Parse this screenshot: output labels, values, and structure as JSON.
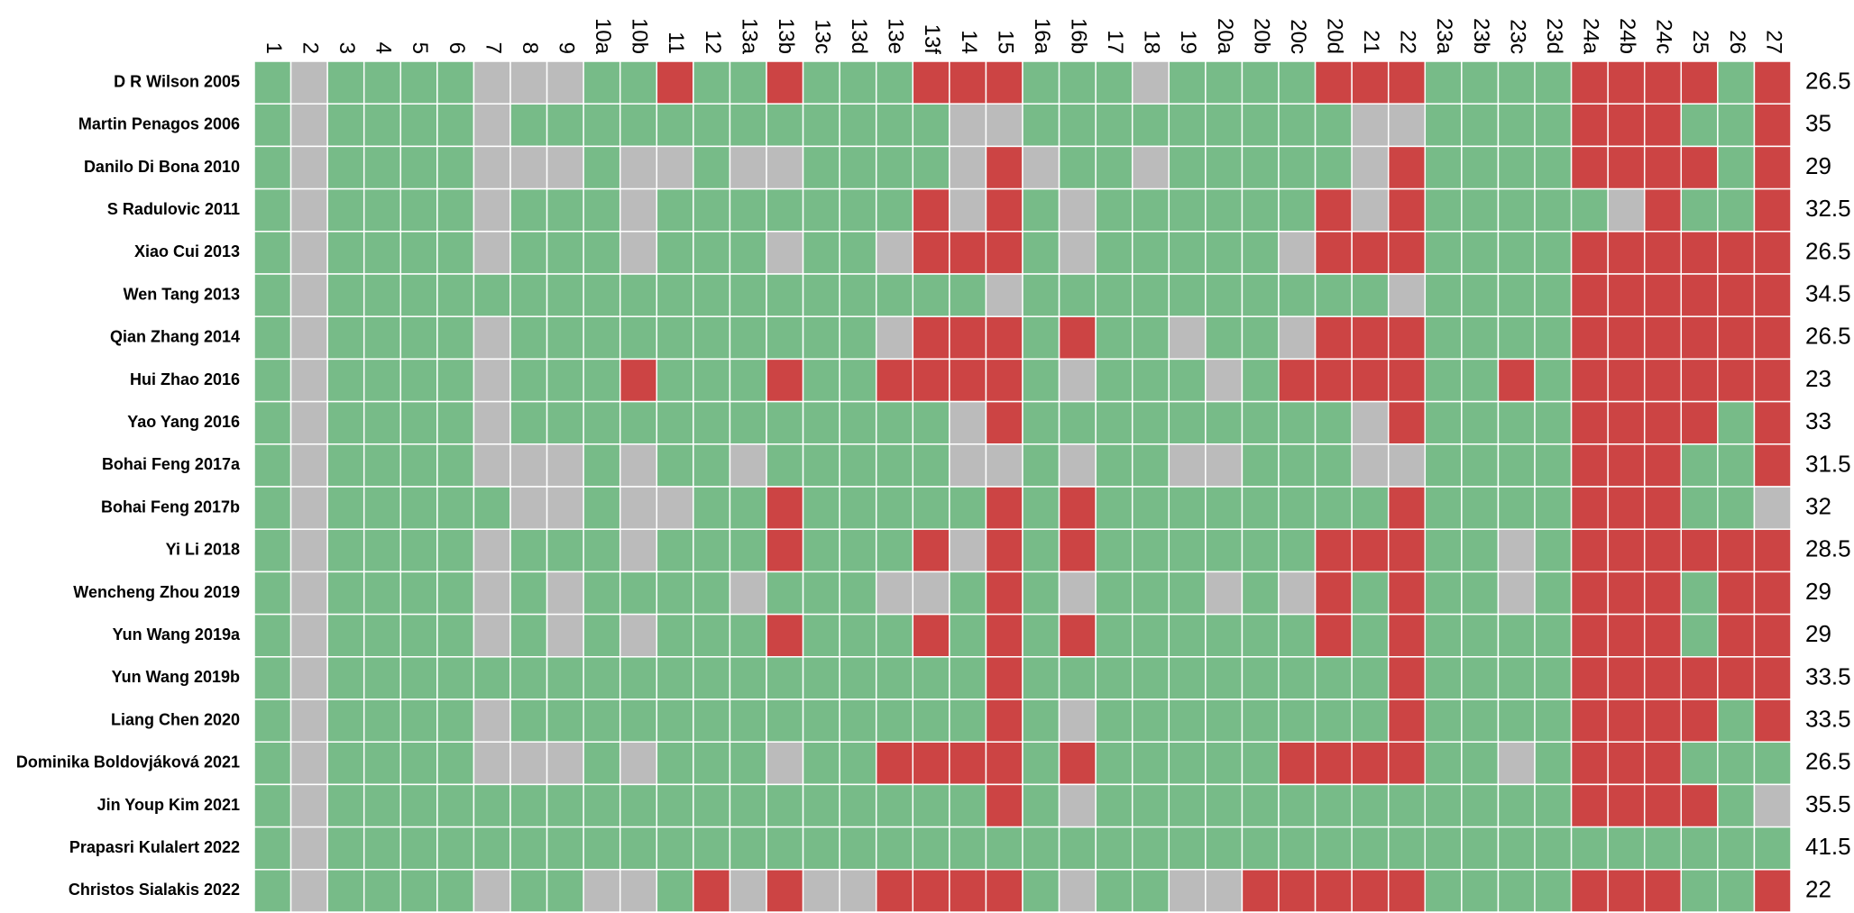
{
  "table": {
    "columns": [
      "1",
      "2",
      "3",
      "4",
      "5",
      "6",
      "7",
      "8",
      "9",
      "10a",
      "10b",
      "11",
      "12",
      "13a",
      "13b",
      "13c",
      "13d",
      "13e",
      "13f",
      "14",
      "15",
      "16a",
      "16b",
      "17",
      "18",
      "19",
      "20a",
      "20b",
      "20c",
      "20d",
      "21",
      "22",
      "23a",
      "23b",
      "23c",
      "23d",
      "24a",
      "24b",
      "24c",
      "25",
      "26",
      "27"
    ],
    "rows": [
      {
        "label": "D R Wilson 2005",
        "score": 26.5,
        "cells": [
          "#7b8",
          "#bbb",
          "#7b8",
          "#7b8",
          "#7b8",
          "#7b8",
          "#bbb",
          "#bbb",
          "#bbb",
          "#7b8",
          "#7b8",
          "#c44",
          "#7b8",
          "#7b8",
          "#c44",
          "#7b8",
          "#7b8",
          "#7b8",
          "#c44",
          "#c44",
          "#c44",
          "#7b8",
          "#7b8",
          "#7b8",
          "#bbb",
          "#7b8",
          "#7b8",
          "#7b8",
          "#7b8",
          "#c44",
          "#c44",
          "#c44",
          "#7b8",
          "#7b8",
          "#7b8",
          "#7b8",
          "#c44",
          "#c44",
          "#c44",
          "#c44",
          "#7b8",
          "#c44"
        ]
      },
      {
        "label": "Martin Penagos 2006",
        "score": 35,
        "cells": [
          "#7b8",
          "#bbb",
          "#7b8",
          "#7b8",
          "#7b8",
          "#7b8",
          "#bbb",
          "#7b8",
          "#7b8",
          "#7b8",
          "#7b8",
          "#7b8",
          "#7b8",
          "#7b8",
          "#7b8",
          "#7b8",
          "#7b8",
          "#7b8",
          "#7b8",
          "#bbb",
          "#bbb",
          "#7b8",
          "#7b8",
          "#7b8",
          "#7b8",
          "#7b8",
          "#7b8",
          "#7b8",
          "#7b8",
          "#7b8",
          "#bbb",
          "#bbb",
          "#7b8",
          "#7b8",
          "#7b8",
          "#7b8",
          "#c44",
          "#c44",
          "#c44",
          "#7b8",
          "#7b8",
          "#c44"
        ]
      },
      {
        "label": "Danilo Di Bona 2010",
        "score": 29,
        "cells": [
          "#7b8",
          "#bbb",
          "#7b8",
          "#7b8",
          "#7b8",
          "#7b8",
          "#bbb",
          "#bbb",
          "#bbb",
          "#7b8",
          "#bbb",
          "#bbb",
          "#7b8",
          "#bbb",
          "#bbb",
          "#7b8",
          "#7b8",
          "#7b8",
          "#7b8",
          "#bbb",
          "#c44",
          "#bbb",
          "#7b8",
          "#7b8",
          "#bbb",
          "#7b8",
          "#7b8",
          "#7b8",
          "#7b8",
          "#7b8",
          "#bbb",
          "#c44",
          "#7b8",
          "#7b8",
          "#7b8",
          "#7b8",
          "#c44",
          "#c44",
          "#c44",
          "#c44",
          "#7b8",
          "#c44"
        ]
      },
      {
        "label": "S Radulovic 2011",
        "score": 32.5,
        "cells": [
          "#7b8",
          "#bbb",
          "#7b8",
          "#7b8",
          "#7b8",
          "#7b8",
          "#bbb",
          "#7b8",
          "#7b8",
          "#7b8",
          "#bbb",
          "#7b8",
          "#7b8",
          "#7b8",
          "#7b8",
          "#7b8",
          "#7b8",
          "#7b8",
          "#c44",
          "#bbb",
          "#c44",
          "#7b8",
          "#bbb",
          "#7b8",
          "#7b8",
          "#7b8",
          "#7b8",
          "#7b8",
          "#7b8",
          "#c44",
          "#bbb",
          "#c44",
          "#7b8",
          "#7b8",
          "#7b8",
          "#7b8",
          "#7b8",
          "#bbb",
          "#c44",
          "#7b8",
          "#7b8",
          "#c44"
        ]
      },
      {
        "label": "Xiao Cui 2013",
        "score": 26.5,
        "cells": [
          "#7b8",
          "#bbb",
          "#7b8",
          "#7b8",
          "#7b8",
          "#7b8",
          "#bbb",
          "#7b8",
          "#7b8",
          "#7b8",
          "#bbb",
          "#7b8",
          "#7b8",
          "#7b8",
          "#bbb",
          "#7b8",
          "#7b8",
          "#bbb",
          "#c44",
          "#c44",
          "#c44",
          "#7b8",
          "#bbb",
          "#7b8",
          "#7b8",
          "#7b8",
          "#7b8",
          "#7b8",
          "#bbb",
          "#c44",
          "#c44",
          "#c44",
          "#7b8",
          "#7b8",
          "#7b8",
          "#7b8",
          "#c44",
          "#c44",
          "#c44",
          "#c44",
          "#c44",
          "#c44"
        ]
      },
      {
        "label": "Wen Tang 2013",
        "score": 34.5,
        "cells": [
          "#7b8",
          "#bbb",
          "#7b8",
          "#7b8",
          "#7b8",
          "#7b8",
          "#7b8",
          "#7b8",
          "#7b8",
          "#7b8",
          "#7b8",
          "#7b8",
          "#7b8",
          "#7b8",
          "#7b8",
          "#7b8",
          "#7b8",
          "#7b8",
          "#7b8",
          "#7b8",
          "#bbb",
          "#7b8",
          "#7b8",
          "#7b8",
          "#7b8",
          "#7b8",
          "#7b8",
          "#7b8",
          "#7b8",
          "#7b8",
          "#7b8",
          "#bbb",
          "#7b8",
          "#7b8",
          "#7b8",
          "#7b8",
          "#c44",
          "#c44",
          "#c44",
          "#c44",
          "#c44",
          "#c44"
        ]
      },
      {
        "label": "Qian Zhang 2014",
        "score": 26.5,
        "cells": [
          "#7b8",
          "#bbb",
          "#7b8",
          "#7b8",
          "#7b8",
          "#7b8",
          "#bbb",
          "#7b8",
          "#7b8",
          "#7b8",
          "#7b8",
          "#7b8",
          "#7b8",
          "#7b8",
          "#7b8",
          "#7b8",
          "#7b8",
          "#bbb",
          "#c44",
          "#c44",
          "#c44",
          "#7b8",
          "#c44",
          "#7b8",
          "#7b8",
          "#bbb",
          "#7b8",
          "#7b8",
          "#bbb",
          "#c44",
          "#c44",
          "#c44",
          "#7b8",
          "#7b8",
          "#7b8",
          "#7b8",
          "#c44",
          "#c44",
          "#c44",
          "#c44",
          "#c44",
          "#c44"
        ]
      },
      {
        "label": "Hui Zhao 2016",
        "score": 23,
        "cells": [
          "#7b8",
          "#bbb",
          "#7b8",
          "#7b8",
          "#7b8",
          "#7b8",
          "#bbb",
          "#7b8",
          "#7b8",
          "#7b8",
          "#c44",
          "#7b8",
          "#7b8",
          "#7b8",
          "#c44",
          "#7b8",
          "#7b8",
          "#c44",
          "#c44",
          "#c44",
          "#c44",
          "#7b8",
          "#bbb",
          "#7b8",
          "#7b8",
          "#7b8",
          "#bbb",
          "#7b8",
          "#c44",
          "#c44",
          "#c44",
          "#c44",
          "#7b8",
          "#7b8",
          "#c44",
          "#7b8",
          "#c44",
          "#c44",
          "#c44",
          "#c44",
          "#c44",
          "#c44"
        ]
      },
      {
        "label": "Yao Yang 2016",
        "score": 33,
        "cells": [
          "#7b8",
          "#bbb",
          "#7b8",
          "#7b8",
          "#7b8",
          "#7b8",
          "#bbb",
          "#7b8",
          "#7b8",
          "#7b8",
          "#7b8",
          "#7b8",
          "#7b8",
          "#7b8",
          "#7b8",
          "#7b8",
          "#7b8",
          "#7b8",
          "#7b8",
          "#bbb",
          "#c44",
          "#7b8",
          "#7b8",
          "#7b8",
          "#7b8",
          "#7b8",
          "#7b8",
          "#7b8",
          "#7b8",
          "#7b8",
          "#bbb",
          "#c44",
          "#7b8",
          "#7b8",
          "#7b8",
          "#7b8",
          "#c44",
          "#c44",
          "#c44",
          "#c44",
          "#7b8",
          "#c44"
        ]
      },
      {
        "label": "Bohai Feng 2017a",
        "score": 31.5,
        "cells": [
          "#7b8",
          "#bbb",
          "#7b8",
          "#7b8",
          "#7b8",
          "#7b8",
          "#bbb",
          "#bbb",
          "#bbb",
          "#7b8",
          "#bbb",
          "#7b8",
          "#7b8",
          "#bbb",
          "#7b8",
          "#7b8",
          "#7b8",
          "#7b8",
          "#7b8",
          "#bbb",
          "#bbb",
          "#7b8",
          "#bbb",
          "#7b8",
          "#7b8",
          "#bbb",
          "#bbb",
          "#7b8",
          "#7b8",
          "#7b8",
          "#bbb",
          "#bbb",
          "#7b8",
          "#7b8",
          "#7b8",
          "#7b8",
          "#c44",
          "#c44",
          "#c44",
          "#7b8",
          "#7b8",
          "#c44"
        ]
      },
      {
        "label": "Bohai Feng 2017b",
        "score": 32,
        "cells": [
          "#7b8",
          "#bbb",
          "#7b8",
          "#7b8",
          "#7b8",
          "#7b8",
          "#7b8",
          "#bbb",
          "#bbb",
          "#7b8",
          "#bbb",
          "#bbb",
          "#7b8",
          "#7b8",
          "#c44",
          "#7b8",
          "#7b8",
          "#7b8",
          "#7b8",
          "#7b8",
          "#c44",
          "#7b8",
          "#c44",
          "#7b8",
          "#7b8",
          "#7b8",
          "#7b8",
          "#7b8",
          "#7b8",
          "#7b8",
          "#7b8",
          "#c44",
          "#7b8",
          "#7b8",
          "#7b8",
          "#7b8",
          "#c44",
          "#c44",
          "#c44",
          "#7b8",
          "#7b8",
          "#bbb"
        ]
      },
      {
        "label": "Yi Li 2018",
        "score": 28.5,
        "cells": [
          "#7b8",
          "#bbb",
          "#7b8",
          "#7b8",
          "#7b8",
          "#7b8",
          "#bbb",
          "#7b8",
          "#7b8",
          "#7b8",
          "#bbb",
          "#7b8",
          "#7b8",
          "#7b8",
          "#c44",
          "#7b8",
          "#7b8",
          "#7b8",
          "#c44",
          "#bbb",
          "#c44",
          "#7b8",
          "#c44",
          "#7b8",
          "#7b8",
          "#7b8",
          "#7b8",
          "#7b8",
          "#7b8",
          "#c44",
          "#c44",
          "#c44",
          "#7b8",
          "#7b8",
          "#bbb",
          "#7b8",
          "#c44",
          "#c44",
          "#c44",
          "#c44",
          "#c44",
          "#c44"
        ]
      },
      {
        "label": "Wencheng Zhou 2019",
        "score": 29,
        "cells": [
          "#7b8",
          "#bbb",
          "#7b8",
          "#7b8",
          "#7b8",
          "#7b8",
          "#bbb",
          "#7b8",
          "#bbb",
          "#7b8",
          "#7b8",
          "#7b8",
          "#7b8",
          "#bbb",
          "#7b8",
          "#7b8",
          "#7b8",
          "#bbb",
          "#bbb",
          "#7b8",
          "#c44",
          "#7b8",
          "#bbb",
          "#7b8",
          "#7b8",
          "#7b8",
          "#bbb",
          "#7b8",
          "#bbb",
          "#c44",
          "#7b8",
          "#c44",
          "#7b8",
          "#7b8",
          "#bbb",
          "#7b8",
          "#c44",
          "#c44",
          "#c44",
          "#7b8",
          "#c44",
          "#c44"
        ]
      },
      {
        "label": "Yun Wang 2019a",
        "score": 29,
        "cells": [
          "#7b8",
          "#bbb",
          "#7b8",
          "#7b8",
          "#7b8",
          "#7b8",
          "#bbb",
          "#7b8",
          "#bbb",
          "#7b8",
          "#bbb",
          "#7b8",
          "#7b8",
          "#7b8",
          "#c44",
          "#7b8",
          "#7b8",
          "#7b8",
          "#c44",
          "#7b8",
          "#c44",
          "#7b8",
          "#c44",
          "#7b8",
          "#7b8",
          "#7b8",
          "#7b8",
          "#7b8",
          "#7b8",
          "#c44",
          "#7b8",
          "#c44",
          "#7b8",
          "#7b8",
          "#7b8",
          "#7b8",
          "#c44",
          "#c44",
          "#c44",
          "#7b8",
          "#c44",
          "#c44"
        ]
      },
      {
        "label": "Yun Wang 2019b",
        "score": 33.5,
        "cells": [
          "#7b8",
          "#bbb",
          "#7b8",
          "#7b8",
          "#7b8",
          "#7b8",
          "#7b8",
          "#7b8",
          "#7b8",
          "#7b8",
          "#7b8",
          "#7b8",
          "#7b8",
          "#7b8",
          "#7b8",
          "#7b8",
          "#7b8",
          "#7b8",
          "#7b8",
          "#7b8",
          "#c44",
          "#7b8",
          "#7b8",
          "#7b8",
          "#7b8",
          "#7b8",
          "#7b8",
          "#7b8",
          "#7b8",
          "#7b8",
          "#7b8",
          "#c44",
          "#7b8",
          "#7b8",
          "#7b8",
          "#7b8",
          "#c44",
          "#c44",
          "#c44",
          "#c44",
          "#c44",
          "#c44"
        ]
      },
      {
        "label": "Liang Chen 2020",
        "score": 33.5,
        "cells": [
          "#7b8",
          "#bbb",
          "#7b8",
          "#7b8",
          "#7b8",
          "#7b8",
          "#bbb",
          "#7b8",
          "#7b8",
          "#7b8",
          "#7b8",
          "#7b8",
          "#7b8",
          "#7b8",
          "#7b8",
          "#7b8",
          "#7b8",
          "#7b8",
          "#7b8",
          "#7b8",
          "#c44",
          "#7b8",
          "#bbb",
          "#7b8",
          "#7b8",
          "#7b8",
          "#7b8",
          "#7b8",
          "#7b8",
          "#7b8",
          "#7b8",
          "#c44",
          "#7b8",
          "#7b8",
          "#7b8",
          "#7b8",
          "#c44",
          "#c44",
          "#c44",
          "#c44",
          "#7b8",
          "#c44"
        ]
      },
      {
        "label": "Dominika Boldovjáková 2021",
        "score": 26.5,
        "cells": [
          "#7b8",
          "#bbb",
          "#7b8",
          "#7b8",
          "#7b8",
          "#7b8",
          "#bbb",
          "#bbb",
          "#bbb",
          "#7b8",
          "#bbb",
          "#7b8",
          "#7b8",
          "#7b8",
          "#bbb",
          "#7b8",
          "#7b8",
          "#c44",
          "#c44",
          "#c44",
          "#c44",
          "#7b8",
          "#c44",
          "#7b8",
          "#7b8",
          "#7b8",
          "#7b8",
          "#7b8",
          "#c44",
          "#c44",
          "#c44",
          "#c44",
          "#7b8",
          "#7b8",
          "#bbb",
          "#7b8",
          "#c44",
          "#c44",
          "#c44",
          "#7b8",
          "#7b8",
          "#7b8"
        ]
      },
      {
        "label": "Jin Youp Kim 2021",
        "score": 35.5,
        "cells": [
          "#7b8",
          "#bbb",
          "#7b8",
          "#7b8",
          "#7b8",
          "#7b8",
          "#7b8",
          "#7b8",
          "#7b8",
          "#7b8",
          "#7b8",
          "#7b8",
          "#7b8",
          "#7b8",
          "#7b8",
          "#7b8",
          "#7b8",
          "#7b8",
          "#7b8",
          "#7b8",
          "#c44",
          "#7b8",
          "#bbb",
          "#7b8",
          "#7b8",
          "#7b8",
          "#7b8",
          "#7b8",
          "#7b8",
          "#7b8",
          "#7b8",
          "#7b8",
          "#7b8",
          "#7b8",
          "#7b8",
          "#7b8",
          "#c44",
          "#c44",
          "#c44",
          "#c44",
          "#7b8",
          "#bbb"
        ]
      },
      {
        "label": "Prapasri Kulalert 2022",
        "score": 41.5,
        "cells": [
          "#7b8",
          "#bbb",
          "#7b8",
          "#7b8",
          "#7b8",
          "#7b8",
          "#7b8",
          "#7b8",
          "#7b8",
          "#7b8",
          "#7b8",
          "#7b8",
          "#7b8",
          "#7b8",
          "#7b8",
          "#7b8",
          "#7b8",
          "#7b8",
          "#7b8",
          "#7b8",
          "#7b8",
          "#7b8",
          "#7b8",
          "#7b8",
          "#7b8",
          "#7b8",
          "#7b8",
          "#7b8",
          "#7b8",
          "#7b8",
          "#7b8",
          "#7b8",
          "#7b8",
          "#7b8",
          "#7b8",
          "#7b8",
          "#7b8",
          "#7b8",
          "#7b8",
          "#7b8",
          "#7b8",
          "#7b8"
        ]
      },
      {
        "label": "Christos Sialakis 2022",
        "score": 22,
        "cells": [
          "#7b8",
          "#bbb",
          "#7b8",
          "#7b8",
          "#7b8",
          "#7b8",
          "#bbb",
          "#7b8",
          "#7b8",
          "#bbb",
          "#bbb",
          "#7b8",
          "#c44",
          "#bbb",
          "#c44",
          "#bbb",
          "#bbb",
          "#c44",
          "#c44",
          "#c44",
          "#c44",
          "#7b8",
          "#bbb",
          "#7b8",
          "#7b8",
          "#bbb",
          "#bbb",
          "#c44",
          "#c44",
          "#c44",
          "#c44",
          "#c44",
          "#7b8",
          "#7b8",
          "#7b8",
          "#7b8",
          "#c44",
          "#c44",
          "#c44",
          "#7b8",
          "#7b8",
          "#c44"
        ]
      }
    ]
  }
}
